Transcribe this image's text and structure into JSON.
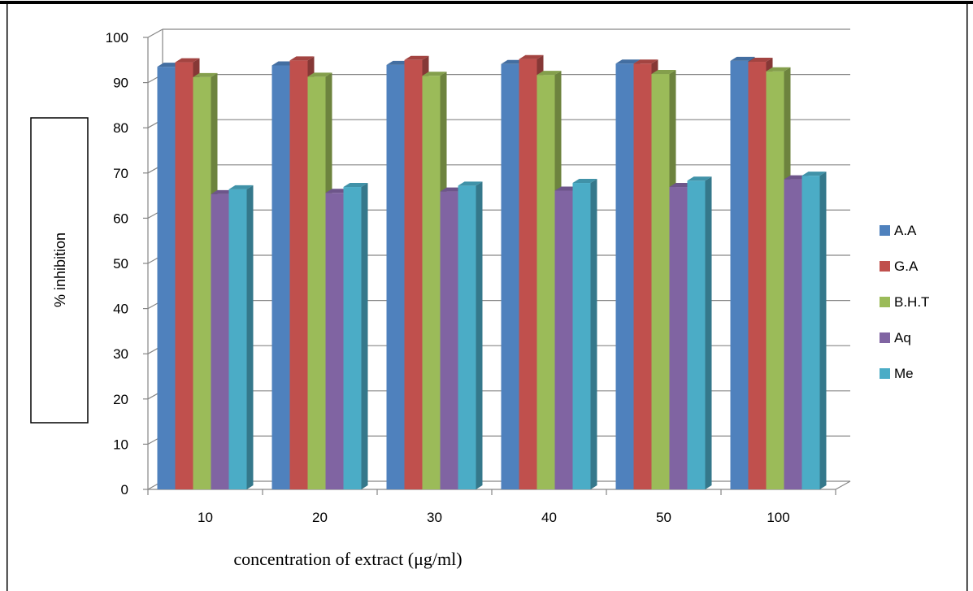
{
  "chart_data": {
    "type": "bar",
    "categories": [
      "10",
      "20",
      "30",
      "40",
      "50",
      "100"
    ],
    "series": [
      {
        "name": "A.A",
        "values": [
          93.5,
          93.8,
          93.9,
          94.1,
          94.2,
          94.8
        ]
      },
      {
        "name": "G.A",
        "values": [
          94.5,
          94.9,
          95.0,
          95.2,
          94.2,
          94.6
        ]
      },
      {
        "name": "B.H.T",
        "values": [
          91.2,
          91.3,
          91.5,
          91.7,
          91.9,
          92.5
        ]
      },
      {
        "name": "Aq",
        "values": [
          65.3,
          65.6,
          65.9,
          66.1,
          66.9,
          68.6
        ]
      },
      {
        "name": "Me",
        "values": [
          66.4,
          66.9,
          67.2,
          67.8,
          68.3,
          69.4
        ]
      }
    ],
    "colors": [
      "#4f81bd",
      "#c0504d",
      "#9bbb59",
      "#8064a2",
      "#4bacc6"
    ],
    "ylabel": "% inhibition",
    "xlabel": "concentration of extract (μg/ml)",
    "ylim": [
      0,
      100
    ],
    "yticks": [
      "0",
      "10",
      "20",
      "30",
      "40",
      "50",
      "60",
      "70",
      "80",
      "90",
      "100"
    ],
    "grid": true,
    "legend_position": "right"
  }
}
